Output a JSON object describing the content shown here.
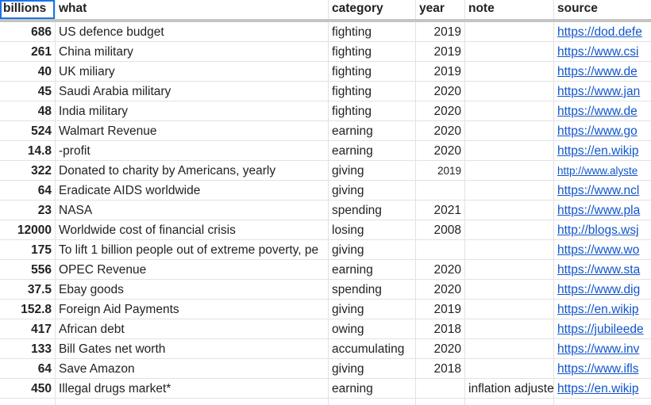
{
  "table": {
    "headers": [
      "billions",
      "what",
      "category",
      "year",
      "note",
      "source"
    ],
    "rows": [
      {
        "billions": 686,
        "what": "US defence budget",
        "category": "fighting",
        "year": 2019,
        "source": "https://dod.defe"
      },
      {
        "billions": 261,
        "what": "China military",
        "category": "fighting",
        "year": 2019,
        "source": "https://www.csi"
      },
      {
        "billions": 40,
        "what": "UK miliary",
        "category": "fighting",
        "year": 2019,
        "source": "https://www.de"
      },
      {
        "billions": 45,
        "what": "Saudi Arabia military",
        "category": "fighting",
        "year": 2020,
        "source": "https://www.jan"
      },
      {
        "billions": 48,
        "what": "India military",
        "category": "fighting",
        "year": 2020,
        "source": "https://www.de"
      },
      {
        "billions": 524,
        "what": "Walmart Revenue",
        "category": "earning",
        "year": 2020,
        "source": "https://www.go"
      },
      {
        "billions": 14.8,
        "what": "-profit",
        "category": "earning",
        "year": 2020,
        "source": "https://en.wikip"
      },
      {
        "billions": 322,
        "what": "Donated to charity by Americans, yearly",
        "category": "giving",
        "year": 2019,
        "source": "http://www.alyste"
      },
      {
        "billions": 64,
        "what": "Eradicate AIDS worldwide",
        "category": "giving",
        "source": "https://www.ncl"
      },
      {
        "billions": 23,
        "what": "NASA",
        "category": "spending",
        "year": 2021,
        "source": "https://www.pla"
      },
      {
        "billions": 12000,
        "what": "Worldwide cost of financial crisis",
        "category": "losing",
        "year": 2008,
        "source": "http://blogs.wsj"
      },
      {
        "billions": 175,
        "what": "To lift 1 billion people out of extreme poverty, pe",
        "category": "giving",
        "source": "https://www.wo"
      },
      {
        "billions": 556,
        "what": "OPEC Revenue",
        "category": "earning",
        "year": 2020,
        "source": "https://www.sta"
      },
      {
        "billions": 37.5,
        "what": "Ebay goods",
        "category": "spending",
        "year": 2020,
        "source": "https://www.dig"
      },
      {
        "billions": 152.8,
        "what": "Foreign Aid Payments",
        "category": "giving",
        "year": 2019,
        "source": "https://en.wikip"
      },
      {
        "billions": 417,
        "what": "African debt",
        "category": "owing",
        "year": 2018,
        "source": "https://jubileede"
      },
      {
        "billions": 133,
        "what": "Bill Gates net worth",
        "category": "accumulating",
        "year": 2020,
        "source": "https://www.inv"
      },
      {
        "billions": 64,
        "what": "Save Amazon",
        "category": "giving",
        "year": 2018,
        "source": "https://www.ifls"
      },
      {
        "billions": 450,
        "what": "Illegal drugs market*",
        "category": "earning",
        "note": "inflation adjuste",
        "source": "https://en.wikip"
      }
    ]
  }
}
